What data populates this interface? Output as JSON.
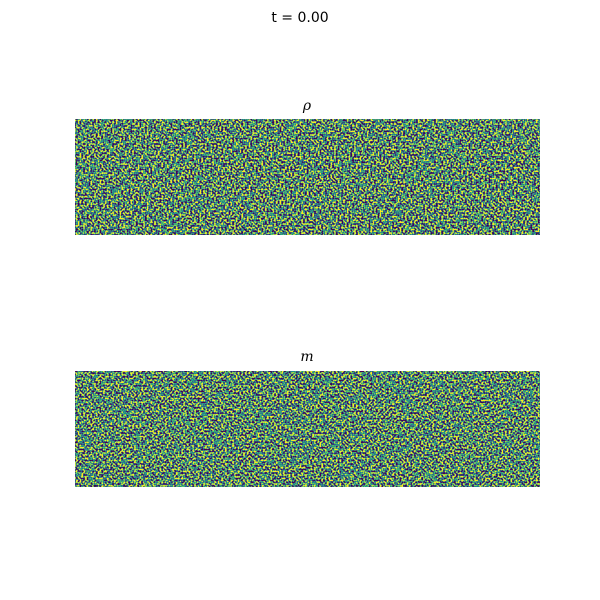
{
  "title": "t = 0.00",
  "panels": [
    {
      "title": "ρ"
    },
    {
      "title": "m"
    }
  ]
}
